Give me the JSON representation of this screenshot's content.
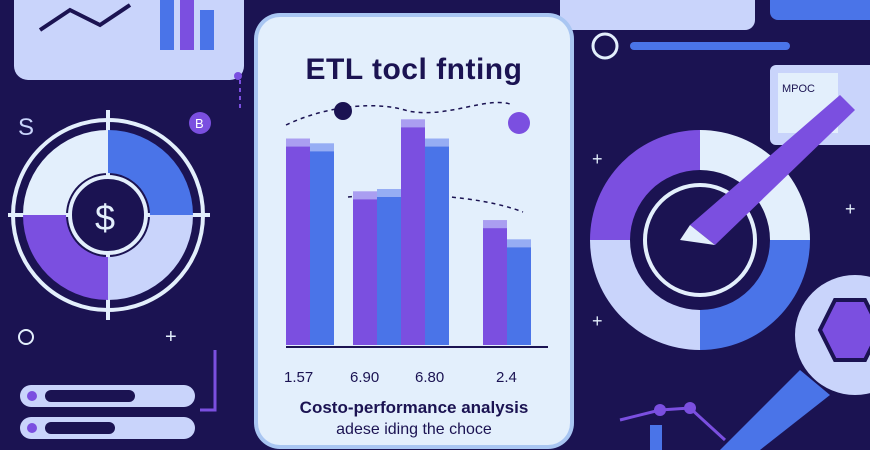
{
  "card": {
    "title": "ETL tocl fnting",
    "caption_line1": "Costo-performance analysis",
    "caption_line2": "adese iding the choce"
  },
  "left_panel": {
    "letter": "S",
    "badge": "B",
    "dollar": "$"
  },
  "right_panel": {
    "label": "MPOC"
  },
  "chart_data": {
    "type": "bar",
    "categories": [
      "1.57",
      "6.90",
      "6.80",
      "2.4"
    ],
    "series": [
      {
        "values": [
          0.86,
          0.64,
          0.94,
          0.52
        ]
      },
      {
        "values": [
          0.84,
          0.65,
          0.86,
          0.44
        ]
      }
    ],
    "title": "ETL tocl fnting",
    "xlabel": "",
    "ylabel": ""
  },
  "colors": {
    "navy": "#1b1352",
    "purple": "#7b4fe0",
    "blue": "#4a74e8",
    "light": "#e3effc",
    "lavender": "#c9d4fb"
  }
}
